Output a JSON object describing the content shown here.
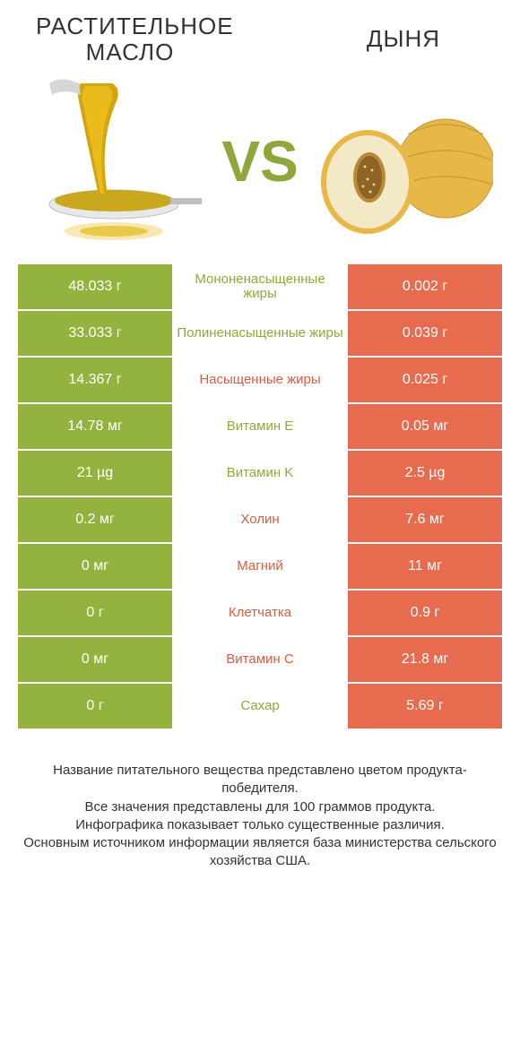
{
  "colors": {
    "green": "#94b23e",
    "orange": "#e76b4f",
    "nutrient_green": "#8ea93a",
    "nutrient_orange": "#d75e42",
    "vs": "#8fa63a"
  },
  "header": {
    "left_title": "РАСТИТЕЛЬНОЕ МАСЛО",
    "right_title": "ДЫНЯ",
    "vs": "VS"
  },
  "rows": [
    {
      "left": "48.033 г",
      "mid": "Мононенасыщенные жиры",
      "right": "0.002 г",
      "winner": "left"
    },
    {
      "left": "33.033 г",
      "mid": "Полиненасыщенные жиры",
      "right": "0.039 г",
      "winner": "left"
    },
    {
      "left": "14.367 г",
      "mid": "Насыщенные жиры",
      "right": "0.025 г",
      "winner": "right"
    },
    {
      "left": "14.78 мг",
      "mid": "Витамин E",
      "right": "0.05 мг",
      "winner": "left"
    },
    {
      "left": "21 µg",
      "mid": "Витамин K",
      "right": "2.5 µg",
      "winner": "left"
    },
    {
      "left": "0.2 мг",
      "mid": "Холин",
      "right": "7.6 мг",
      "winner": "right"
    },
    {
      "left": "0 мг",
      "mid": "Магний",
      "right": "11 мг",
      "winner": "right"
    },
    {
      "left": "0 г",
      "mid": "Клетчатка",
      "right": "0.9 г",
      "winner": "right"
    },
    {
      "left": "0 мг",
      "mid": "Витамин C",
      "right": "21.8 мг",
      "winner": "right"
    },
    {
      "left": "0 г",
      "mid": "Сахар",
      "right": "5.69 г",
      "winner": "left"
    }
  ],
  "footnotes": [
    "Название питательного вещества представлено цветом продукта-победителя.",
    "Все значения представлены для 100 граммов продукта.",
    "Инфографика показывает только существенные различия.",
    "Основным источником информации является база министерства сельского хозяйства США."
  ]
}
